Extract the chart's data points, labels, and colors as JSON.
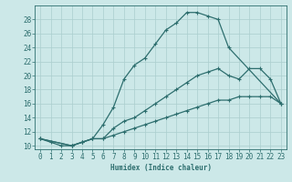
{
  "title": "",
  "xlabel": "Humidex (Indice chaleur)",
  "xlim": [
    -0.5,
    23.5
  ],
  "ylim": [
    9.5,
    30
  ],
  "yticks": [
    10,
    12,
    14,
    16,
    18,
    20,
    22,
    24,
    26,
    28
  ],
  "xticks": [
    0,
    1,
    2,
    3,
    4,
    5,
    6,
    7,
    8,
    9,
    10,
    11,
    12,
    13,
    14,
    15,
    16,
    17,
    18,
    19,
    20,
    21,
    22,
    23
  ],
  "bg_color": "#cce8e8",
  "line_color": "#2d6e6e",
  "line1_x": [
    0,
    1,
    2,
    3,
    4,
    5,
    6,
    7,
    8,
    9,
    10,
    11,
    12,
    13,
    14,
    15,
    16,
    17,
    18,
    23
  ],
  "line1_y": [
    11,
    10.5,
    10,
    10,
    10.5,
    11,
    13,
    15.5,
    19.5,
    21.5,
    22.5,
    24.5,
    26.5,
    27.5,
    29,
    29,
    28.5,
    28,
    24,
    16
  ],
  "line2_x": [
    0,
    3,
    4,
    5,
    6,
    7,
    8,
    9,
    10,
    11,
    12,
    13,
    14,
    15,
    16,
    17,
    18,
    19,
    20,
    21,
    22,
    23
  ],
  "line2_y": [
    11,
    10,
    10.5,
    11,
    11,
    12.5,
    13.5,
    14,
    15,
    16,
    17,
    18,
    19,
    20,
    20.5,
    21,
    20,
    19.5,
    21,
    21,
    19.5,
    16
  ],
  "line3_x": [
    0,
    3,
    4,
    5,
    6,
    7,
    8,
    9,
    10,
    11,
    12,
    13,
    14,
    15,
    16,
    17,
    18,
    19,
    20,
    21,
    22,
    23
  ],
  "line3_y": [
    11,
    10,
    10.5,
    11,
    11,
    11.5,
    12,
    12.5,
    13,
    13.5,
    14,
    14.5,
    15,
    15.5,
    16,
    16.5,
    16.5,
    17,
    17,
    17,
    17,
    16
  ]
}
